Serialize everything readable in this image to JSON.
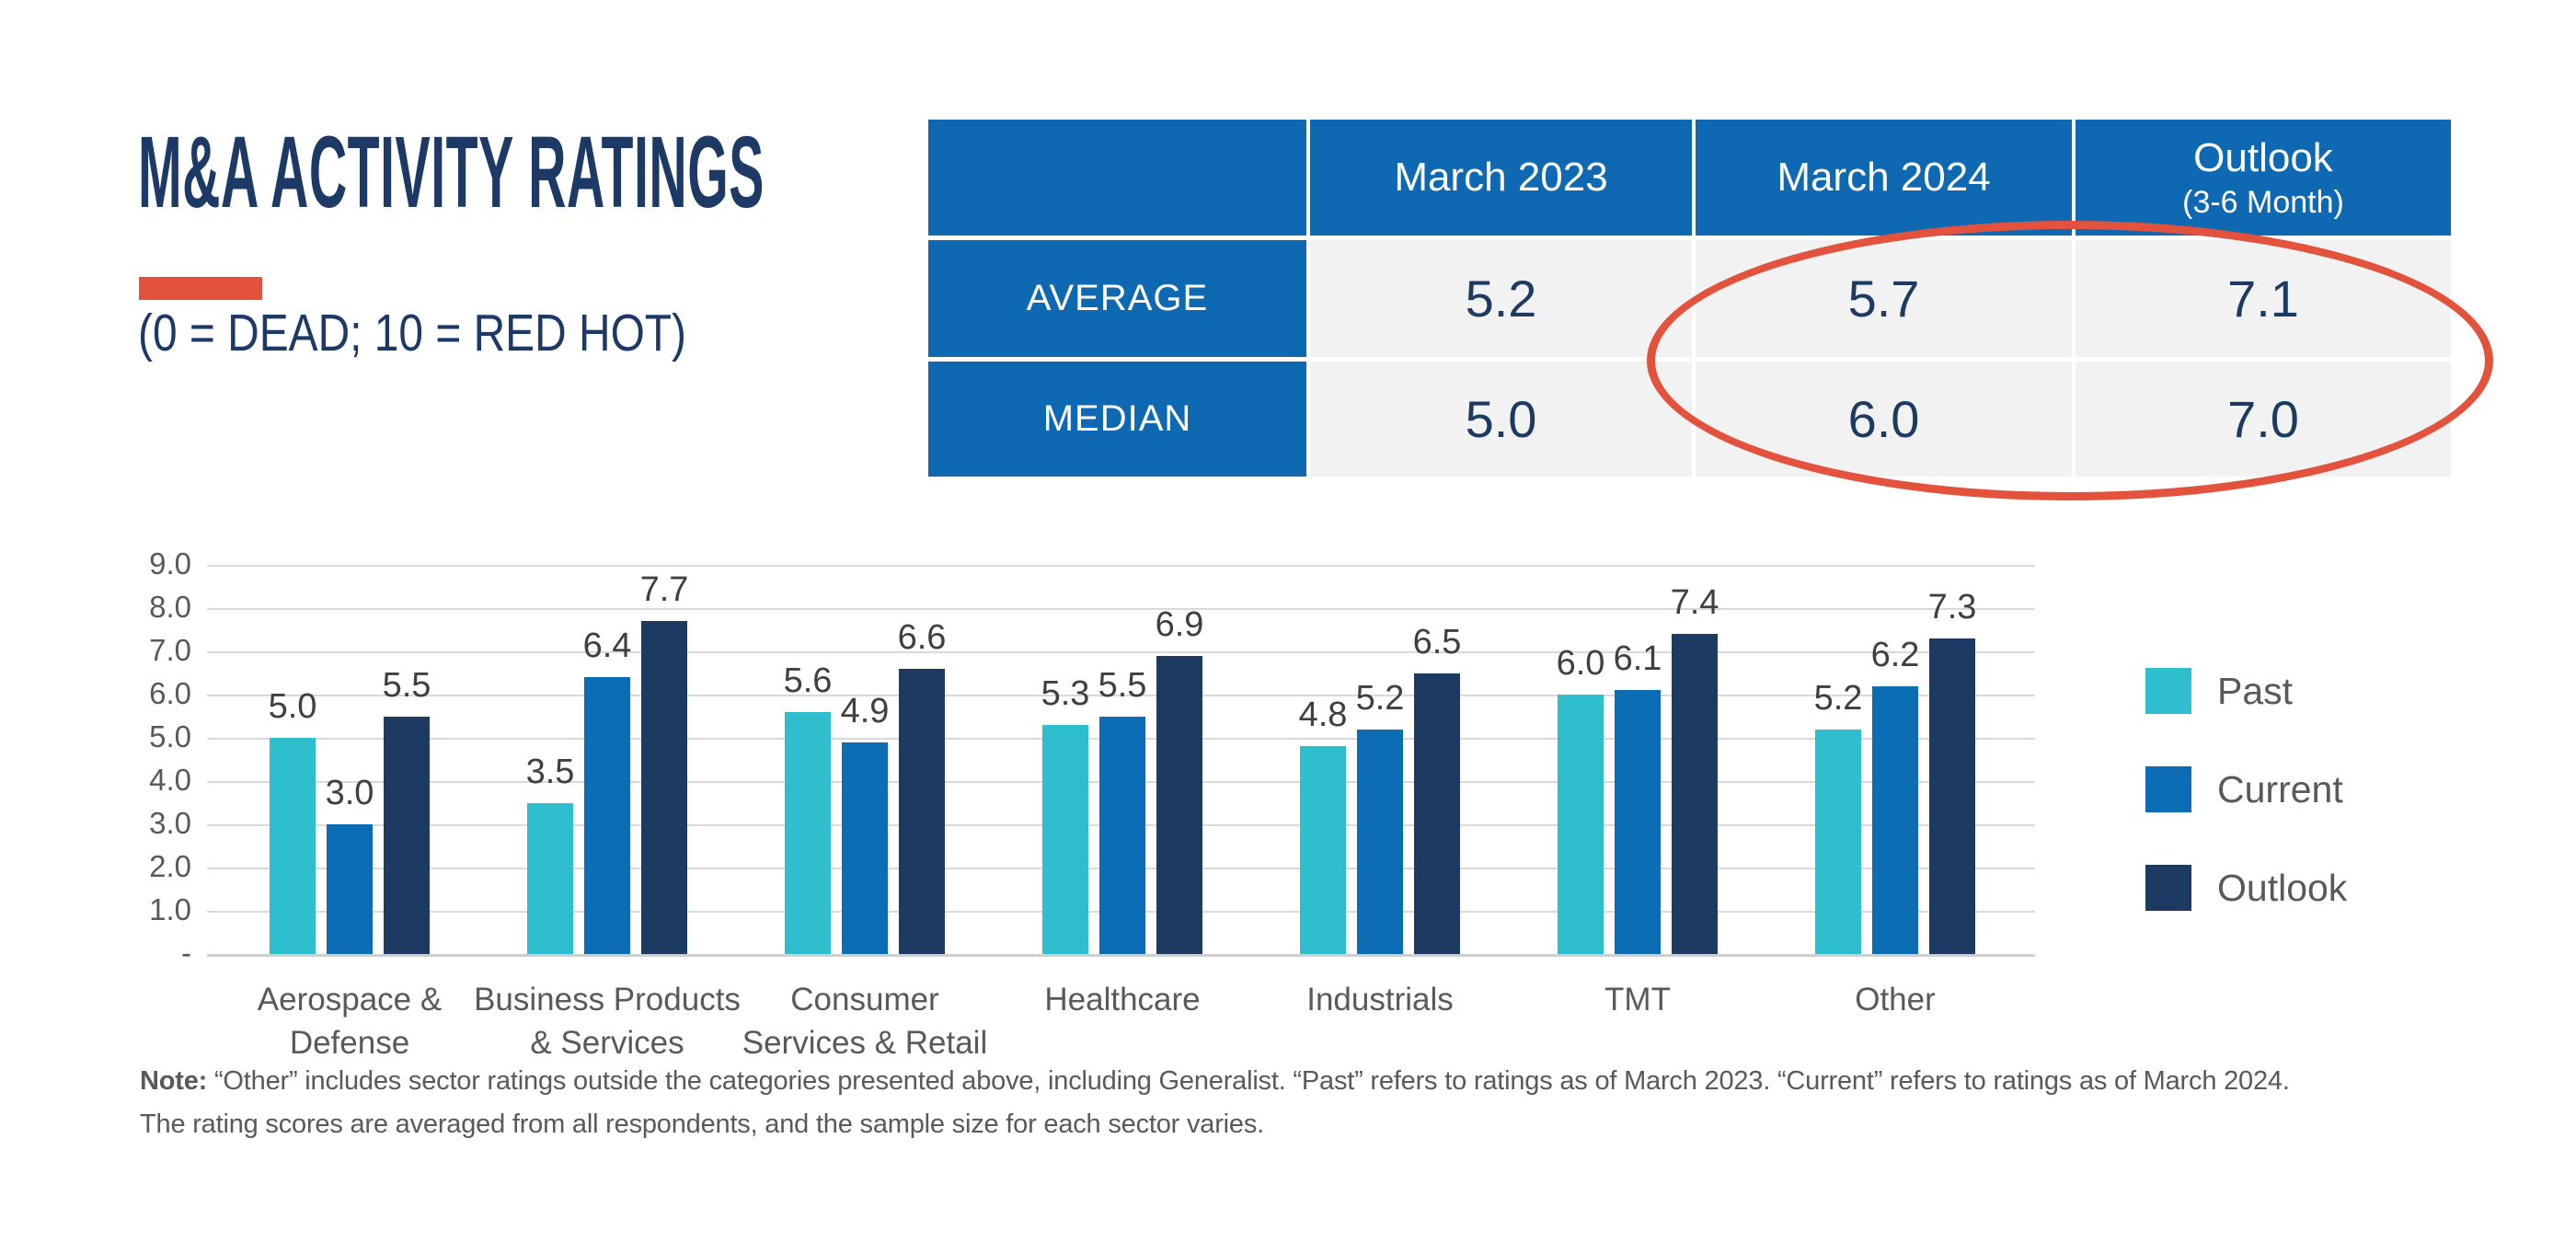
{
  "title": "M&A ACTIVITY RATINGS",
  "subtitle": "(0 = DEAD; 10 = RED HOT)",
  "colors": {
    "navy_heading": "#1d3a66",
    "table_header_blue": "#0e69b2",
    "table_cell_gray": "#f2f2f2",
    "table_value_navy": "#1c3a62",
    "highlight_red": "#e2523c",
    "grid_gray": "#d9d9d9",
    "label_gray": "#595959",
    "value_label_gray": "#3f3f3f"
  },
  "table": {
    "header": [
      "",
      "March 2023",
      "March 2024",
      "Outlook"
    ],
    "header_subnote": "(3-6 Month)",
    "rows": [
      {
        "label": "AVERAGE",
        "values": [
          "5.2",
          "5.7",
          "7.1"
        ]
      },
      {
        "label": "MEDIAN",
        "values": [
          "5.0",
          "6.0",
          "7.0"
        ]
      }
    ],
    "annotation": {
      "type": "ellipse",
      "color": "#e2523c",
      "around": "March 2024 and Outlook columns"
    }
  },
  "chart_data": {
    "type": "bar",
    "title": "",
    "categories": [
      [
        "Aerospace &",
        "Defense"
      ],
      [
        "Business Products",
        "& Services"
      ],
      [
        "Consumer",
        "Services & Retail"
      ],
      [
        "Healthcare"
      ],
      [
        "Industrials"
      ],
      [
        "TMT"
      ],
      [
        "Other"
      ]
    ],
    "series": [
      {
        "name": "Past",
        "color": "#2ebecd",
        "values": [
          5.0,
          3.5,
          5.6,
          5.3,
          4.8,
          6.0,
          5.2
        ]
      },
      {
        "name": "Current",
        "color": "#0c6db5",
        "values": [
          3.0,
          6.4,
          4.9,
          5.5,
          5.2,
          6.1,
          6.2
        ]
      },
      {
        "name": "Outlook",
        "color": "#1d3b62",
        "values": [
          5.5,
          7.7,
          6.6,
          6.9,
          6.5,
          7.4,
          7.3
        ]
      }
    ],
    "ylim": [
      0,
      9
    ],
    "yticks": [
      "9.0",
      "8.0",
      "7.0",
      "6.0",
      "5.0",
      "4.0",
      "3.0",
      "2.0",
      "1.0",
      "-"
    ],
    "grid": true,
    "legend_position": "right",
    "value_labels": true
  },
  "note": {
    "label": "Note:",
    "line1": " “Other” includes sector ratings outside the categories presented above, including Generalist. “Past” refers to ratings as of March 2023. “Current” refers to ratings as of March 2024.",
    "line2": "The rating scores are averaged from all respondents, and the sample size for each sector varies."
  }
}
